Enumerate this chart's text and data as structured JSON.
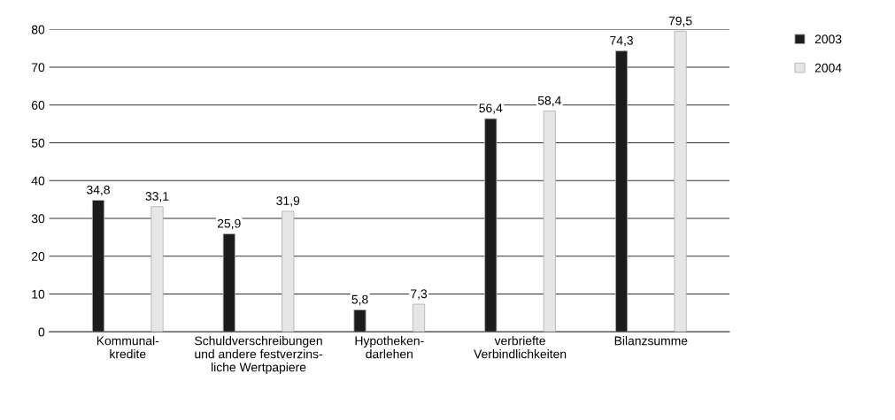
{
  "chart_data": {
    "type": "bar",
    "categories": [
      "Kommunal-\nkredite",
      "Schuldverschreibungen\nund andere festverzins-\nliche Wertpapiere",
      "Hypotheken-\ndarlehen",
      "verbriefte\nVerbindlichkeiten",
      "Bilanzsumme"
    ],
    "series": [
      {
        "name": "2003",
        "color": "#1c1c1c",
        "values": [
          34.8,
          25.9,
          5.8,
          56.4,
          74.3
        ],
        "value_labels": [
          "34,8",
          "25,9",
          "5,8",
          "56,4",
          "74,3"
        ]
      },
      {
        "name": "2004",
        "color": "#e6e6e6",
        "values": [
          33.1,
          31.9,
          7.3,
          58.4,
          79.5
        ],
        "value_labels": [
          "33,1",
          "31,9",
          "7,3",
          "58,4",
          "79,5"
        ]
      }
    ],
    "ylim": [
      0,
      80
    ],
    "yticks": [
      0,
      10,
      20,
      30,
      40,
      50,
      60,
      70,
      80
    ],
    "grid": "y",
    "legend": "top right"
  }
}
